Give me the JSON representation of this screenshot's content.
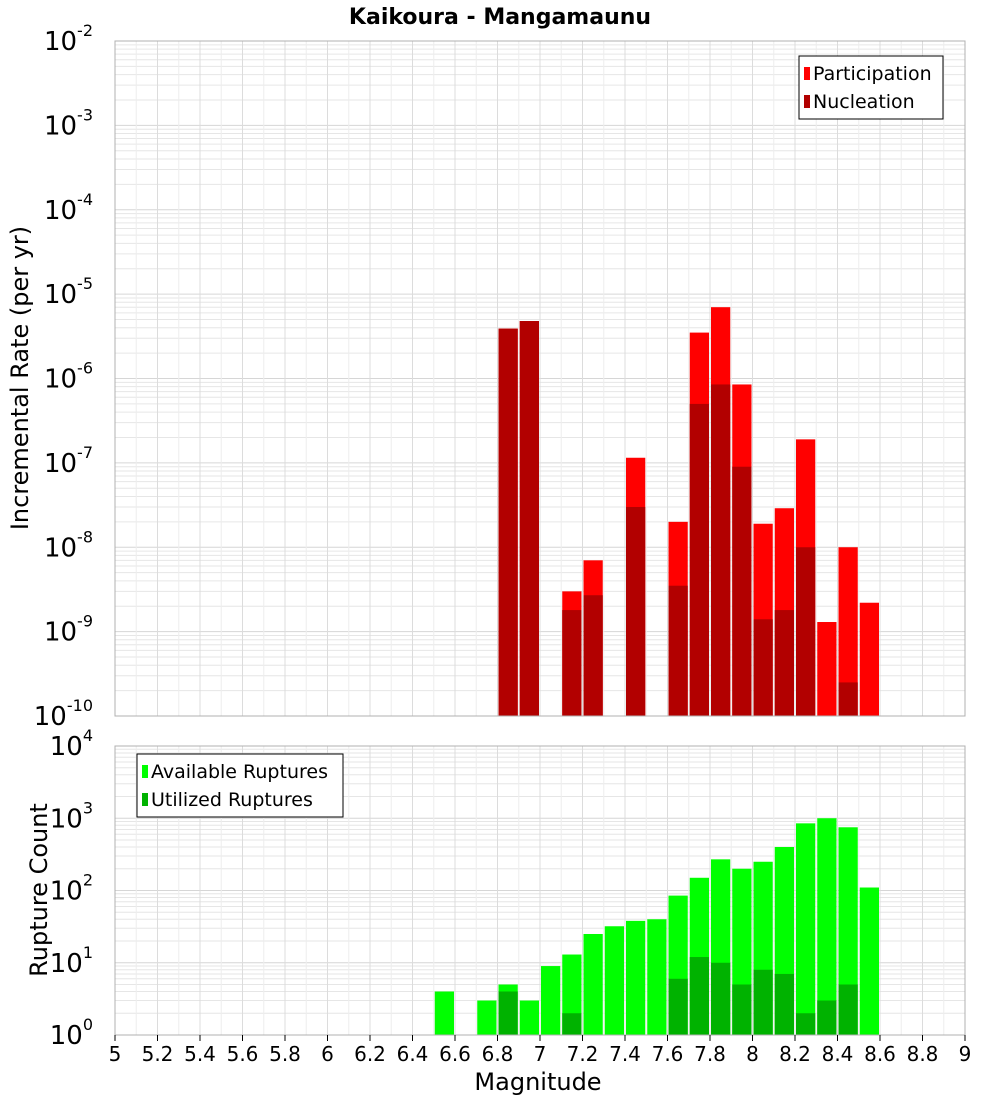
{
  "title": "Kaikoura - Mangamaunu",
  "colors": {
    "participation": "#ff0000",
    "nucleation": "#b20000",
    "available": "#00ff00",
    "utilized": "#00b200",
    "grid": "#e6e6e6",
    "frame": "#b0b0b0"
  },
  "chart_data": [
    {
      "type": "bar",
      "title": "Kaikoura - Mangamaunu",
      "xlabel": "",
      "ylabel": "Incremental Rate (per yr)",
      "yscale": "log",
      "ylim": [
        1e-10,
        0.01
      ],
      "xlim": [
        5,
        9
      ],
      "grid": true,
      "legend_position": "top-right",
      "y_ticks": [
        {
          "base": "10",
          "exp": "-10"
        },
        {
          "base": "10",
          "exp": "-9"
        },
        {
          "base": "10",
          "exp": "-8"
        },
        {
          "base": "10",
          "exp": "-7"
        },
        {
          "base": "10",
          "exp": "-6"
        },
        {
          "base": "10",
          "exp": "-5"
        },
        {
          "base": "10",
          "exp": "-4"
        },
        {
          "base": "10",
          "exp": "-3"
        },
        {
          "base": "10",
          "exp": "-2"
        }
      ],
      "x": [
        6.85,
        6.95,
        7.15,
        7.25,
        7.45,
        7.65,
        7.75,
        7.85,
        7.95,
        8.05,
        8.15,
        8.25,
        8.35,
        8.45,
        8.55
      ],
      "series": [
        {
          "name": "Participation",
          "values": [
            3.9e-06,
            4.8e-06,
            3e-09,
            7e-09,
            1.15e-07,
            2e-08,
            3.5e-06,
            7e-06,
            8.5e-07,
            1.9e-08,
            2.9e-08,
            1.9e-07,
            1.3e-09,
            1e-08,
            2.2e-09
          ]
        },
        {
          "name": "Nucleation",
          "values": [
            3.9e-06,
            4.8e-06,
            1.8e-09,
            2.7e-09,
            3e-08,
            3.5e-09,
            5e-07,
            8.5e-07,
            9e-08,
            1.4e-09,
            1.8e-09,
            1e-08,
            0,
            2.5e-10,
            0
          ]
        }
      ]
    },
    {
      "type": "bar",
      "title": "",
      "xlabel": "Magnitude",
      "ylabel": "Rupture Count",
      "yscale": "log",
      "ylim": [
        1,
        10000
      ],
      "xlim": [
        5,
        9
      ],
      "grid": true,
      "legend_position": "top-left",
      "y_ticks": [
        {
          "base": "10",
          "exp": "0"
        },
        {
          "base": "10",
          "exp": "1"
        },
        {
          "base": "10",
          "exp": "2"
        },
        {
          "base": "10",
          "exp": "3"
        },
        {
          "base": "10",
          "exp": "4"
        }
      ],
      "x_ticks": [
        "5",
        "5.2",
        "5.4",
        "5.6",
        "5.8",
        "6",
        "6.2",
        "6.4",
        "6.6",
        "6.8",
        "7",
        "7.2",
        "7.4",
        "7.6",
        "7.8",
        "8",
        "8.2",
        "8.4",
        "8.6",
        "8.8",
        "9"
      ],
      "x": [
        6.55,
        6.75,
        6.85,
        6.95,
        7.05,
        7.15,
        7.25,
        7.35,
        7.45,
        7.55,
        7.65,
        7.75,
        7.85,
        7.95,
        8.05,
        8.15,
        8.25,
        8.35,
        8.45,
        8.55
      ],
      "series": [
        {
          "name": "Available Ruptures",
          "values": [
            4,
            3,
            5,
            3,
            9,
            13,
            25,
            32,
            38,
            40,
            85,
            150,
            270,
            200,
            250,
            400,
            850,
            1000,
            750,
            110
          ]
        },
        {
          "name": "Utilized Ruptures",
          "values": [
            0,
            0,
            4,
            1,
            0,
            2,
            1,
            1,
            1,
            0,
            6,
            12,
            10,
            5,
            8,
            7,
            2,
            3,
            5,
            1
          ]
        }
      ]
    }
  ]
}
